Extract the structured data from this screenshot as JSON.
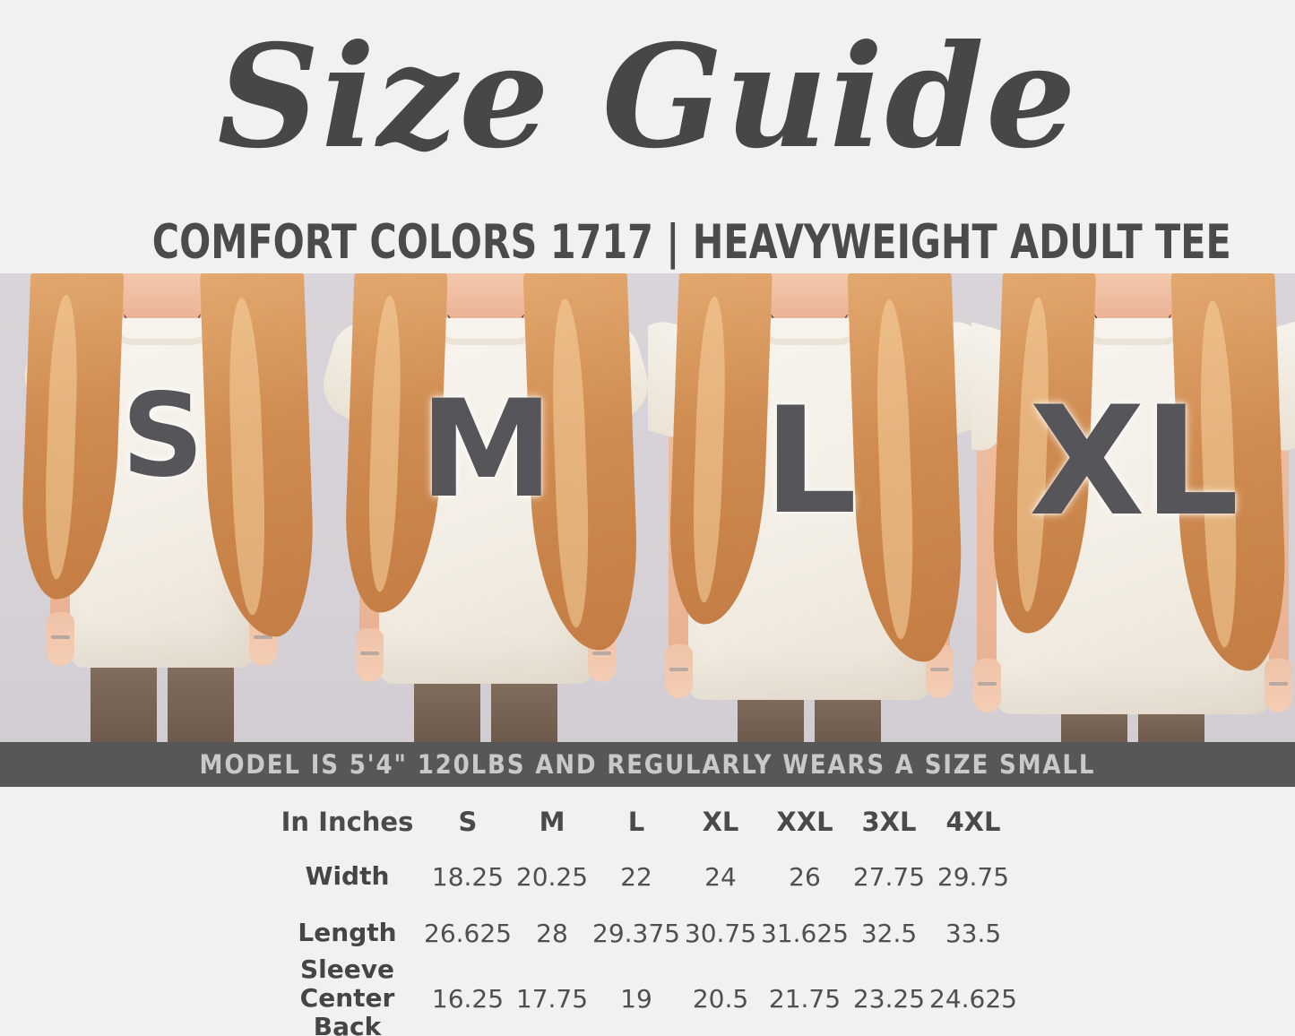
{
  "header": {
    "title": "Size Guide",
    "subtitle": "COMFORT COLORS 1717 | HEAVYWEIGHT ADULT TEE"
  },
  "photos": {
    "panels": [
      {
        "label": "S"
      },
      {
        "label": "M"
      },
      {
        "label": "L"
      },
      {
        "label": "XL"
      }
    ]
  },
  "banner": {
    "text": "MODEL IS 5'4\" 120LBS AND REGULARLY WEARS A SIZE SMALL"
  },
  "size_table": {
    "unit_label": "In Inches",
    "columns": [
      "S",
      "M",
      "L",
      "XL",
      "XXL",
      "3XL",
      "4XL"
    ],
    "rows": [
      {
        "label": "Width",
        "values": [
          "18.25",
          "20.25",
          "22",
          "24",
          "26",
          "27.75",
          "29.75"
        ]
      },
      {
        "label": "Length",
        "values": [
          "26.625",
          "28",
          "29.375",
          "30.75",
          "31.625",
          "32.5",
          "33.5"
        ]
      },
      {
        "label": "Sleeve Center Back",
        "values": [
          "16.25",
          "17.75",
          "19",
          "20.5",
          "21.75",
          "23.25",
          "24.625"
        ]
      }
    ]
  },
  "colors": {
    "title_text": "#474747",
    "banner_bg": "#575757",
    "banner_text": "#c9c9c9",
    "photo_bg": "#d7d2d7",
    "shirt": "#f4f0e8",
    "hair": "#cd8b55",
    "skin": "#eec0a6",
    "leggings": "#7b6559",
    "table_text": "#4a4a4a",
    "page_bg": "#f1f1f0"
  }
}
